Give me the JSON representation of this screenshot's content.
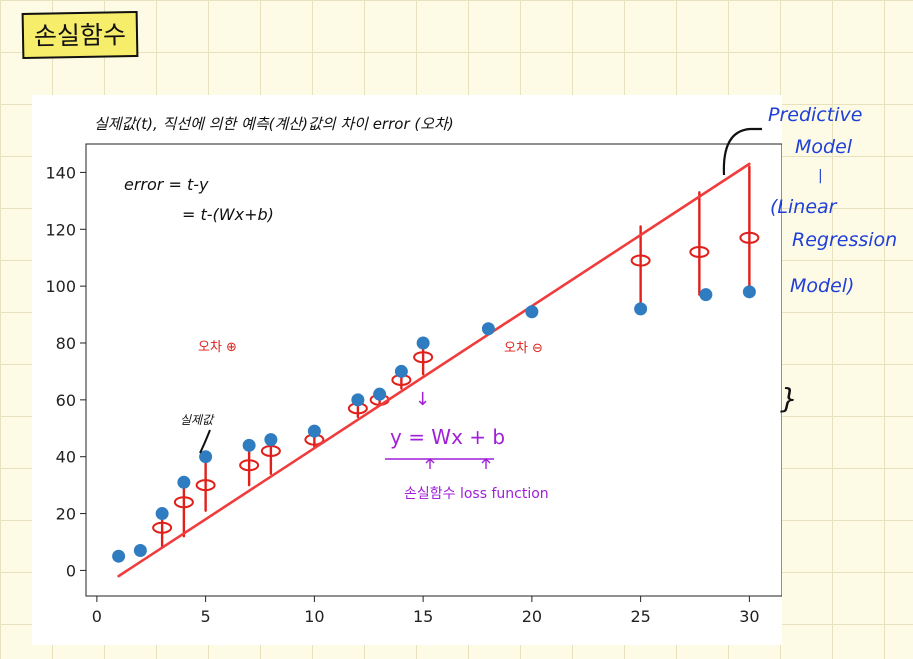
{
  "heading": "손실함수",
  "notes": {
    "title": "실제값(t), 직선에 의한 예측(계산)값의 차이 error (오차)",
    "error_line1": "error = t-y",
    "error_line2": "= t-(Wx+b)",
    "actual_value": "실제값",
    "error_plus": "오차 ⊕",
    "error_minus": "오차 ⊖",
    "down_arrow": "↓",
    "formula": "y = Wx + b",
    "loss_function": "손실함수 loss function",
    "predictive_model": [
      "Predictive",
      "Model",
      "(Linear",
      "Regression",
      "Model)"
    ],
    "side_mark": "}"
  },
  "colors": {
    "points": "#2f7cc0",
    "regression_line": "#f03c3c",
    "error_marks": "#e0201a",
    "axes": "#222222",
    "annotation_purple": "#a020d8",
    "annotation_blue": "#1f3fd8"
  },
  "chart_data": {
    "type": "scatter",
    "xlim": [
      -0.5,
      31.5
    ],
    "ylim": [
      -9,
      150
    ],
    "xticks": [
      0,
      5,
      10,
      15,
      20,
      25,
      30
    ],
    "yticks": [
      0,
      20,
      40,
      60,
      80,
      100,
      120,
      140
    ],
    "grid": false,
    "points": [
      {
        "x": 1,
        "y": 5
      },
      {
        "x": 2,
        "y": 7
      },
      {
        "x": 3,
        "y": 20
      },
      {
        "x": 4,
        "y": 31
      },
      {
        "x": 5,
        "y": 40
      },
      {
        "x": 7,
        "y": 44
      },
      {
        "x": 8,
        "y": 46
      },
      {
        "x": 10,
        "y": 49
      },
      {
        "x": 12,
        "y": 60
      },
      {
        "x": 13,
        "y": 62
      },
      {
        "x": 14,
        "y": 70
      },
      {
        "x": 15,
        "y": 80
      },
      {
        "x": 18,
        "y": 85
      },
      {
        "x": 20,
        "y": 91
      },
      {
        "x": 25,
        "y": 92
      },
      {
        "x": 28,
        "y": 97
      },
      {
        "x": 30,
        "y": 98
      }
    ],
    "regression_line": {
      "x": [
        1,
        30
      ],
      "y": [
        -2,
        143
      ]
    },
    "error_marks": [
      {
        "x": 3,
        "y_from": 20,
        "y_to": 8,
        "mark_y": 15
      },
      {
        "x": 4,
        "y_from": 31,
        "y_to": 12,
        "mark_y": 24
      },
      {
        "x": 5,
        "y_from": 40,
        "y_to": 21,
        "mark_y": 30
      },
      {
        "x": 7,
        "y_from": 44,
        "y_to": 30,
        "mark_y": 37
      },
      {
        "x": 8,
        "y_from": 46,
        "y_to": 34,
        "mark_y": 42
      },
      {
        "x": 10,
        "y_from": 49,
        "y_to": 43,
        "mark_y": 46
      },
      {
        "x": 12,
        "y_from": 60,
        "y_to": 54,
        "mark_y": 57
      },
      {
        "x": 13,
        "y_from": 62,
        "y_to": 58,
        "mark_y": 60
      },
      {
        "x": 14,
        "y_from": 70,
        "y_to": 64,
        "mark_y": 67
      },
      {
        "x": 15,
        "y_from": 80,
        "y_to": 69,
        "mark_y": 75
      },
      {
        "x": 25,
        "y_from": 92,
        "y_to": 121,
        "mark_y": 109
      },
      {
        "x": 27.7,
        "y_from": 97,
        "y_to": 133,
        "mark_y": 112
      },
      {
        "x": 30,
        "y_from": 98,
        "y_to": 142,
        "mark_y": 117
      }
    ]
  }
}
